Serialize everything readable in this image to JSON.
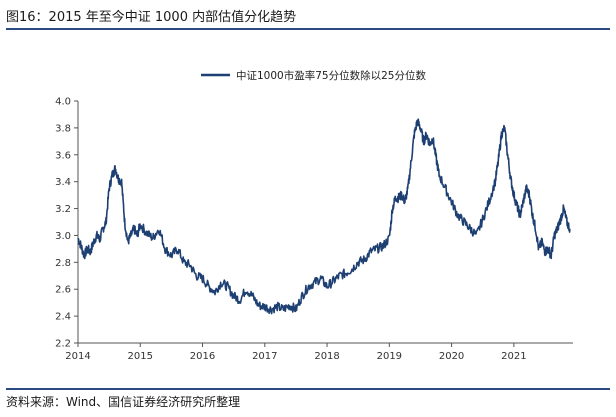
{
  "figure": {
    "title": "图16：2015 年至今中证 1000 内部估值分化趋势",
    "source": "资料来源：Wind、国信证券经济研究所整理"
  },
  "colors": {
    "series": "#1d3f72",
    "rule": "#2a4a80",
    "axis": "#555555"
  },
  "chart_data": {
    "type": "line",
    "title": "",
    "xlabel": "",
    "ylabel": "",
    "xlim": [
      2014.0,
      2021.95
    ],
    "ylim": [
      2.2,
      4.0
    ],
    "x_ticks": [
      "2014",
      "2015",
      "2016",
      "2017",
      "2018",
      "2019",
      "2020",
      "2021"
    ],
    "y_ticks": [
      "2.2",
      "2.4",
      "2.6",
      "2.8",
      "3.0",
      "3.2",
      "3.4",
      "3.6",
      "3.8",
      "4.0"
    ],
    "grid": false,
    "legend": "top-center",
    "series": [
      {
        "name": "中证1000市盈率75分位数除以25分位数",
        "x": [
          2014.0,
          2014.05,
          2014.1,
          2014.15,
          2014.2,
          2014.25,
          2014.3,
          2014.35,
          2014.4,
          2014.45,
          2014.5,
          2014.55,
          2014.6,
          2014.65,
          2014.7,
          2014.75,
          2014.8,
          2014.85,
          2014.9,
          2014.95,
          2015.0,
          2015.1,
          2015.2,
          2015.3,
          2015.4,
          2015.5,
          2015.6,
          2015.7,
          2015.8,
          2015.9,
          2016.0,
          2016.1,
          2016.2,
          2016.3,
          2016.4,
          2016.5,
          2016.6,
          2016.7,
          2016.8,
          2016.9,
          2017.0,
          2017.1,
          2017.2,
          2017.3,
          2017.4,
          2017.5,
          2017.6,
          2017.7,
          2017.8,
          2017.9,
          2018.0,
          2018.1,
          2018.2,
          2018.3,
          2018.4,
          2018.5,
          2018.6,
          2018.7,
          2018.8,
          2018.9,
          2019.0,
          2019.05,
          2019.1,
          2019.15,
          2019.2,
          2019.25,
          2019.3,
          2019.35,
          2019.4,
          2019.45,
          2019.5,
          2019.55,
          2019.6,
          2019.65,
          2019.7,
          2019.75,
          2019.8,
          2019.9,
          2020.0,
          2020.1,
          2020.2,
          2020.3,
          2020.4,
          2020.5,
          2020.6,
          2020.7,
          2020.75,
          2020.8,
          2020.85,
          2020.9,
          2020.95,
          2021.0,
          2021.05,
          2021.1,
          2021.15,
          2021.2,
          2021.25,
          2021.3,
          2021.35,
          2021.4,
          2021.45,
          2021.5,
          2021.55,
          2021.6,
          2021.65,
          2021.7,
          2021.75,
          2021.8,
          2021.85,
          2021.9
        ],
        "values": [
          2.98,
          2.92,
          2.85,
          2.9,
          2.88,
          2.95,
          3.0,
          2.97,
          3.05,
          3.1,
          3.35,
          3.45,
          3.5,
          3.42,
          3.4,
          3.1,
          2.95,
          3.0,
          3.05,
          3.0,
          3.08,
          3.02,
          2.98,
          3.05,
          2.9,
          2.85,
          2.9,
          2.8,
          2.78,
          2.7,
          2.68,
          2.62,
          2.58,
          2.65,
          2.62,
          2.55,
          2.52,
          2.6,
          2.55,
          2.48,
          2.47,
          2.45,
          2.47,
          2.45,
          2.48,
          2.45,
          2.55,
          2.62,
          2.65,
          2.68,
          2.62,
          2.66,
          2.7,
          2.72,
          2.75,
          2.8,
          2.82,
          2.88,
          2.9,
          2.92,
          2.98,
          3.2,
          3.28,
          3.28,
          3.3,
          3.25,
          3.35,
          3.55,
          3.75,
          3.85,
          3.8,
          3.7,
          3.75,
          3.68,
          3.72,
          3.58,
          3.45,
          3.35,
          3.25,
          3.15,
          3.1,
          3.05,
          3.0,
          3.12,
          3.25,
          3.4,
          3.55,
          3.75,
          3.8,
          3.6,
          3.42,
          3.3,
          3.22,
          3.15,
          3.25,
          3.35,
          3.3,
          3.15,
          3.05,
          2.9,
          2.95,
          2.88,
          2.9,
          2.85,
          3.0,
          3.05,
          3.12,
          3.2,
          3.1,
          3.05
        ]
      }
    ]
  }
}
